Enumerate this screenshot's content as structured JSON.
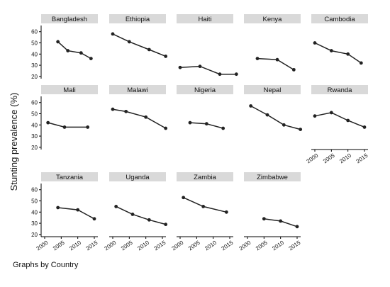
{
  "note": "Graphs by Country",
  "chart_data": {
    "type": "line",
    "ylabel": "Stunting prevalence (%)",
    "xlabel": "",
    "xlim": [
      2000,
      2015
    ],
    "ylim": [
      18,
      63
    ],
    "x_ticks": [
      "2000",
      "2005",
      "2010",
      "2015"
    ],
    "y_ticks": [
      "20",
      "30",
      "40",
      "50",
      "60"
    ],
    "grid": false,
    "series_color": "#222222",
    "strip_color": "#d9d9d9",
    "panels": [
      {
        "name": "Bangladesh",
        "x": [
          2004,
          2007,
          2011,
          2014
        ],
        "y": [
          51,
          43,
          41,
          36
        ]
      },
      {
        "name": "Ethiopia",
        "x": [
          2000,
          2005,
          2011,
          2016
        ],
        "y": [
          58,
          51,
          44,
          38
        ]
      },
      {
        "name": "Haiti",
        "x": [
          2000,
          2006,
          2012,
          2017
        ],
        "y": [
          28,
          29,
          22,
          22
        ]
      },
      {
        "name": "Kenya",
        "x": [
          2003,
          2009,
          2014
        ],
        "y": [
          36,
          35,
          26
        ]
      },
      {
        "name": "Cambodia",
        "x": [
          2000,
          2005,
          2010,
          2014
        ],
        "y": [
          50,
          43,
          40,
          32
        ]
      },
      {
        "name": "Mali",
        "x": [
          2001,
          2006,
          2013
        ],
        "y": [
          42,
          38,
          38
        ]
      },
      {
        "name": "Malawi",
        "x": [
          2000,
          2004,
          2010,
          2016
        ],
        "y": [
          54,
          52,
          47,
          37
        ]
      },
      {
        "name": "Nigeria",
        "x": [
          2003,
          2008,
          2013
        ],
        "y": [
          42,
          41,
          37
        ]
      },
      {
        "name": "Nepal",
        "x": [
          2001,
          2006,
          2011,
          2016
        ],
        "y": [
          57,
          49,
          40,
          36
        ]
      },
      {
        "name": "Rwanda",
        "x": [
          2000,
          2005,
          2010,
          2015
        ],
        "y": [
          48,
          51,
          44,
          38
        ]
      },
      {
        "name": "Tanzania",
        "x": [
          2004,
          2010,
          2015
        ],
        "y": [
          44,
          42,
          34
        ]
      },
      {
        "name": "Uganda",
        "x": [
          2001,
          2006,
          2011,
          2016
        ],
        "y": [
          45,
          38,
          33,
          29
        ]
      },
      {
        "name": "Zambia",
        "x": [
          2001,
          2007,
          2014
        ],
        "y": [
          53,
          45,
          40
        ]
      },
      {
        "name": "Zimbabwe",
        "x": [
          2005,
          2010,
          2015
        ],
        "y": [
          34,
          32,
          27
        ]
      }
    ]
  }
}
